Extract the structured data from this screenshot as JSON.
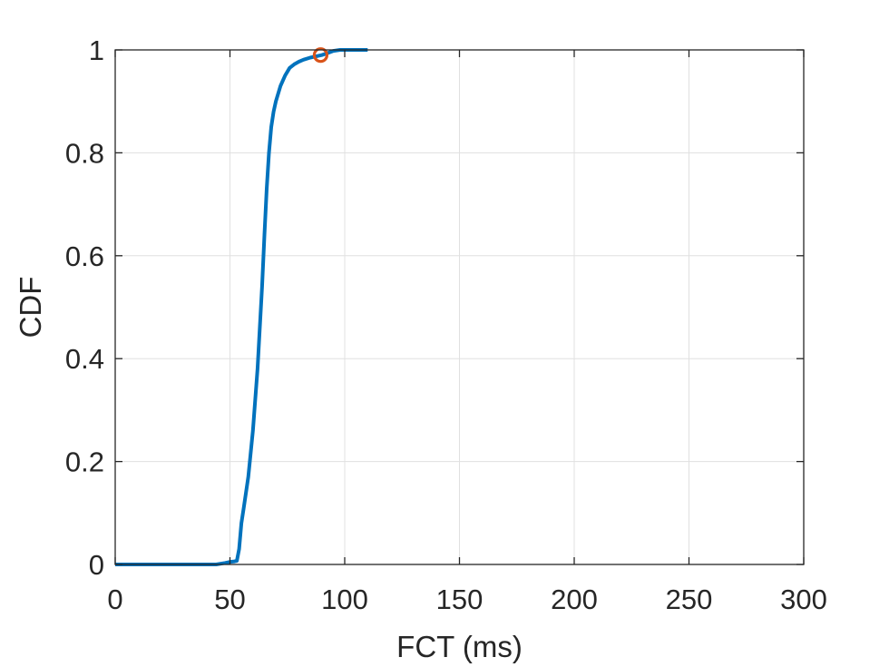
{
  "chart_data": {
    "type": "line",
    "title": "",
    "xlabel": "FCT (ms)",
    "ylabel": "CDF",
    "xlim": [
      0,
      300
    ],
    "ylim": [
      0,
      1
    ],
    "xticks": [
      0,
      50,
      100,
      150,
      200,
      250,
      300
    ],
    "yticks": [
      0,
      0.2,
      0.4,
      0.6,
      0.8,
      1
    ],
    "xtick_labels": [
      "0",
      "50",
      "100",
      "150",
      "200",
      "250",
      "300"
    ],
    "ytick_labels": [
      "0",
      "0.2",
      "0.4",
      "0.6",
      "0.8",
      "1"
    ],
    "grid": true,
    "colors": {
      "line": "#0072BD",
      "marker": "#D95319",
      "grid": "#e0e0e0",
      "axis": "#262626"
    },
    "series": [
      {
        "x": [
          0,
          10,
          20,
          30,
          40,
          44,
          48,
          50,
          52,
          53,
          54,
          55,
          56,
          58,
          60,
          62,
          64,
          65,
          66,
          67,
          68,
          69,
          70,
          72,
          74,
          76,
          78,
          80,
          82,
          85,
          88,
          90,
          92,
          95,
          98,
          100,
          105,
          110
        ],
        "y": [
          0,
          0,
          0,
          0,
          0,
          0,
          0.003,
          0.005,
          0.006,
          0.007,
          0.03,
          0.08,
          0.11,
          0.17,
          0.26,
          0.38,
          0.54,
          0.64,
          0.73,
          0.8,
          0.85,
          0.88,
          0.9,
          0.93,
          0.95,
          0.965,
          0.972,
          0.977,
          0.981,
          0.985,
          0.988,
          0.99,
          0.993,
          0.998,
          1.0,
          1.0,
          1.0,
          1.0
        ]
      }
    ],
    "markers": [
      {
        "x": 89.5,
        "y": 0.99,
        "style": "circle-open"
      }
    ]
  }
}
